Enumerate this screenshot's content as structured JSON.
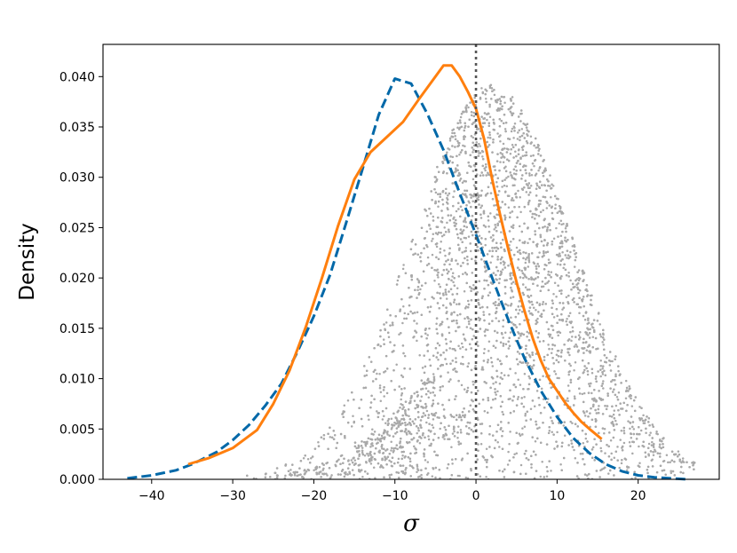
{
  "chart_data": {
    "type": "line",
    "xlabel": "σ",
    "ylabel": "Density",
    "xlim": [
      -46,
      30
    ],
    "ylim": [
      0,
      0.0432
    ],
    "x_ticks": [
      -40,
      -30,
      -20,
      -10,
      0,
      10,
      20
    ],
    "y_ticks": [
      0.0,
      0.005,
      0.01,
      0.015,
      0.02,
      0.025,
      0.03,
      0.035,
      0.04
    ],
    "x_tick_labels": [
      "−40",
      "−30",
      "−20",
      "−10",
      "0",
      "10",
      "20"
    ],
    "y_tick_labels": [
      "0.000",
      "0.005",
      "0.010",
      "0.015",
      "0.020",
      "0.025",
      "0.030",
      "0.035",
      "0.040"
    ],
    "grid": false,
    "vline": {
      "x": 0,
      "style": "dotted",
      "color": "#555555"
    },
    "series": [
      {
        "style": "dashed",
        "color": "#0068a8",
        "x": [
          -43,
          -40,
          -37,
          -35,
          -32,
          -30,
          -28,
          -26,
          -24,
          -22,
          -20,
          -18,
          -16,
          -14,
          -12,
          -10,
          -8,
          -6,
          -4,
          -2,
          0,
          2,
          4,
          6,
          8,
          10,
          12,
          14,
          16,
          18,
          20,
          22,
          24,
          26
        ],
        "y": [
          0.0001,
          0.0004,
          0.0009,
          0.0015,
          0.0027,
          0.0039,
          0.0054,
          0.0073,
          0.0095,
          0.0127,
          0.0162,
          0.0203,
          0.0255,
          0.0308,
          0.0362,
          0.0398,
          0.0393,
          0.0363,
          0.0327,
          0.0284,
          0.0243,
          0.02,
          0.0158,
          0.012,
          0.0088,
          0.0062,
          0.0041,
          0.0026,
          0.0015,
          0.0008,
          0.0004,
          0.0002,
          0.0001,
          0.0
        ]
      },
      {
        "style": "solid",
        "color": "#ff7f0e",
        "x": [
          -35.5,
          -33,
          -30,
          -27,
          -25,
          -23,
          -21,
          -19,
          -17,
          -15,
          -13,
          -11,
          -9,
          -7,
          -5,
          -4,
          -3,
          -2,
          -1,
          0,
          1,
          2,
          3,
          4,
          5,
          6,
          7,
          8,
          9,
          10,
          11,
          12,
          13,
          14,
          15.5
        ],
        "y": [
          0.0015,
          0.0021,
          0.0031,
          0.0049,
          0.0075,
          0.0108,
          0.0151,
          0.02,
          0.0252,
          0.0298,
          0.0325,
          0.034,
          0.0355,
          0.0378,
          0.04,
          0.0411,
          0.0411,
          0.04,
          0.0385,
          0.0368,
          0.0338,
          0.0298,
          0.0262,
          0.0228,
          0.0196,
          0.0167,
          0.014,
          0.0118,
          0.01,
          0.0088,
          0.0076,
          0.0066,
          0.0057,
          0.005,
          0.004
        ]
      }
    ],
    "scatter": {
      "color": "#a9a9a9",
      "description_free": true,
      "count": 5200
    }
  }
}
